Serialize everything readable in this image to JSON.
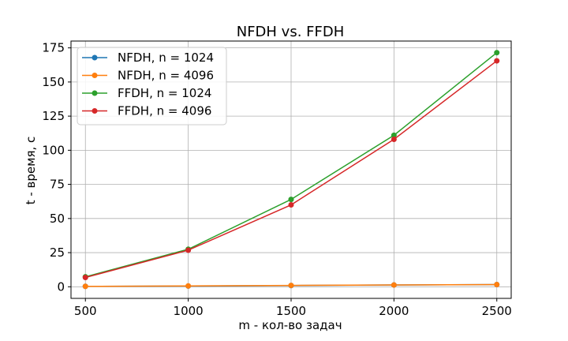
{
  "chart_data": {
    "type": "line",
    "title": "NFDH vs. FFDH",
    "xlabel": "m - кол-во задач",
    "ylabel": "t - время, с",
    "x": [
      500,
      1000,
      1500,
      2000,
      2500
    ],
    "xticks": [
      "500",
      "1000",
      "1500",
      "2000",
      "2500"
    ],
    "yticks": [
      "0",
      "25",
      "50",
      "75",
      "100",
      "125",
      "150",
      "175"
    ],
    "xlim": [
      430,
      2570
    ],
    "ylim": [
      -8.5,
      180
    ],
    "grid": true,
    "legend_position": "top-left",
    "series": [
      {
        "name": "NFDH, n = 1024",
        "color": "#1f77b4",
        "values": [
          0.3,
          0.5,
          0.9,
          1.3,
          1.6
        ]
      },
      {
        "name": "NFDH, n = 4096",
        "color": "#ff7f0e",
        "values": [
          0.3,
          0.6,
          1.0,
          1.3,
          1.6
        ]
      },
      {
        "name": "FFDH, n = 1024",
        "color": "#2ca02c",
        "values": [
          7.3,
          27.5,
          64,
          111,
          171.5
        ]
      },
      {
        "name": "FFDH, n = 4096",
        "color": "#d62728",
        "values": [
          6.8,
          26.8,
          60,
          108,
          165.5
        ]
      }
    ]
  }
}
